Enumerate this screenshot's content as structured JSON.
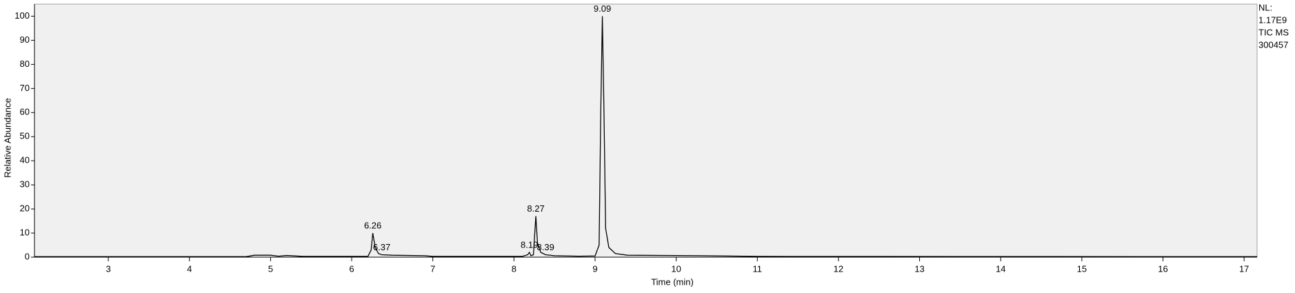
{
  "chart_data": {
    "type": "line",
    "x_label": "Time (min)",
    "y_label": "Relative Abundance",
    "info": [
      "NL:",
      "1.17E9",
      "TIC  MS",
      "300457"
    ],
    "xlim": [
      2.09,
      17.16
    ],
    "ylim": [
      0,
      105
    ],
    "xticks": [
      3,
      4,
      5,
      6,
      7,
      8,
      9,
      10,
      11,
      12,
      13,
      14,
      15,
      16,
      17
    ],
    "yticks": [
      0,
      10,
      20,
      30,
      40,
      50,
      60,
      70,
      80,
      90,
      100
    ],
    "color": "#000000",
    "background": "#f0f0f0",
    "x": [
      2.09,
      4.7,
      4.8,
      5.0,
      5.1,
      5.2,
      5.4,
      6.2,
      6.24,
      6.26,
      6.29,
      6.33,
      6.37,
      6.5,
      6.9,
      7.0,
      8.1,
      8.17,
      8.19,
      8.21,
      8.24,
      8.27,
      8.29,
      8.33,
      8.39,
      8.5,
      8.8,
      9.0,
      9.05,
      9.07,
      9.09,
      9.11,
      9.13,
      9.17,
      9.25,
      9.4,
      10.3,
      11.0,
      17.16
    ],
    "values": [
      0.2,
      0.2,
      0.8,
      0.8,
      0.4,
      0.7,
      0.3,
      0.3,
      3,
      10,
      4,
      1.5,
      1,
      0.8,
      0.6,
      0.3,
      0.3,
      1,
      2,
      0.6,
      1,
      17,
      6,
      2,
      1,
      0.6,
      0.4,
      0.5,
      5,
      60,
      100,
      60,
      12,
      4,
      1.5,
      0.8,
      0.6,
      0.3,
      0.2
    ],
    "peak_labels": [
      {
        "x": 6.26,
        "y": 10
      },
      {
        "x": 6.37,
        "y": 1
      },
      {
        "x": 8.19,
        "y": 2
      },
      {
        "x": 8.27,
        "y": 17
      },
      {
        "x": 8.39,
        "y": 1
      },
      {
        "x": 9.09,
        "y": 100
      }
    ]
  }
}
